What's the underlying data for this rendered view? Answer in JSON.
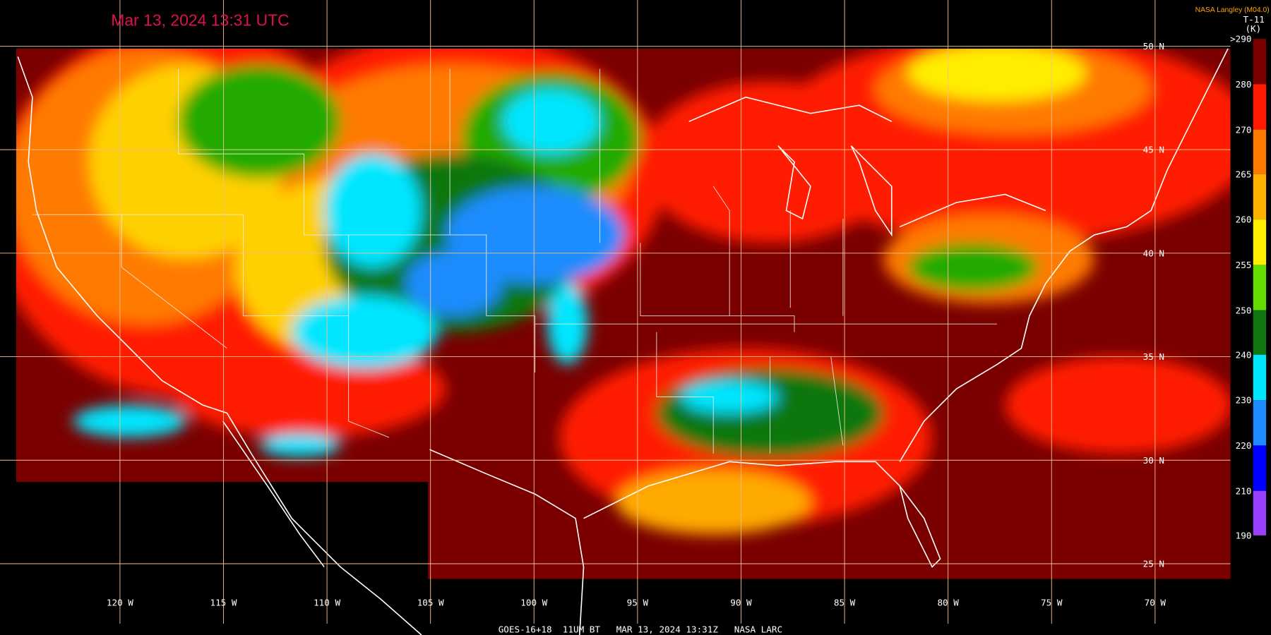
{
  "header": {
    "title": "Mar 13, 2024 13:31 UTC",
    "source": "NASA Langley (M04.0)",
    "product": "T-11",
    "unit": "(K)"
  },
  "colorbar": {
    "labels": [
      ">290",
      "280",
      "270",
      "265",
      "260",
      "255",
      "250",
      "240",
      "230",
      "220",
      "210",
      "190"
    ]
  },
  "grid": {
    "latitudes": [
      "50 N",
      "45 N",
      "40 N",
      "35 N",
      "30 N",
      "25 N"
    ],
    "longitudes": [
      "120 W",
      "115 W",
      "110 W",
      "105 W",
      "100 W",
      "95 W",
      "90 W",
      "85 W",
      "80 W",
      "75 W",
      "70 W"
    ]
  },
  "footer": "GOES-16+18  11UM BT   MAR 13, 2024 13:31Z   NASA LARC"
}
